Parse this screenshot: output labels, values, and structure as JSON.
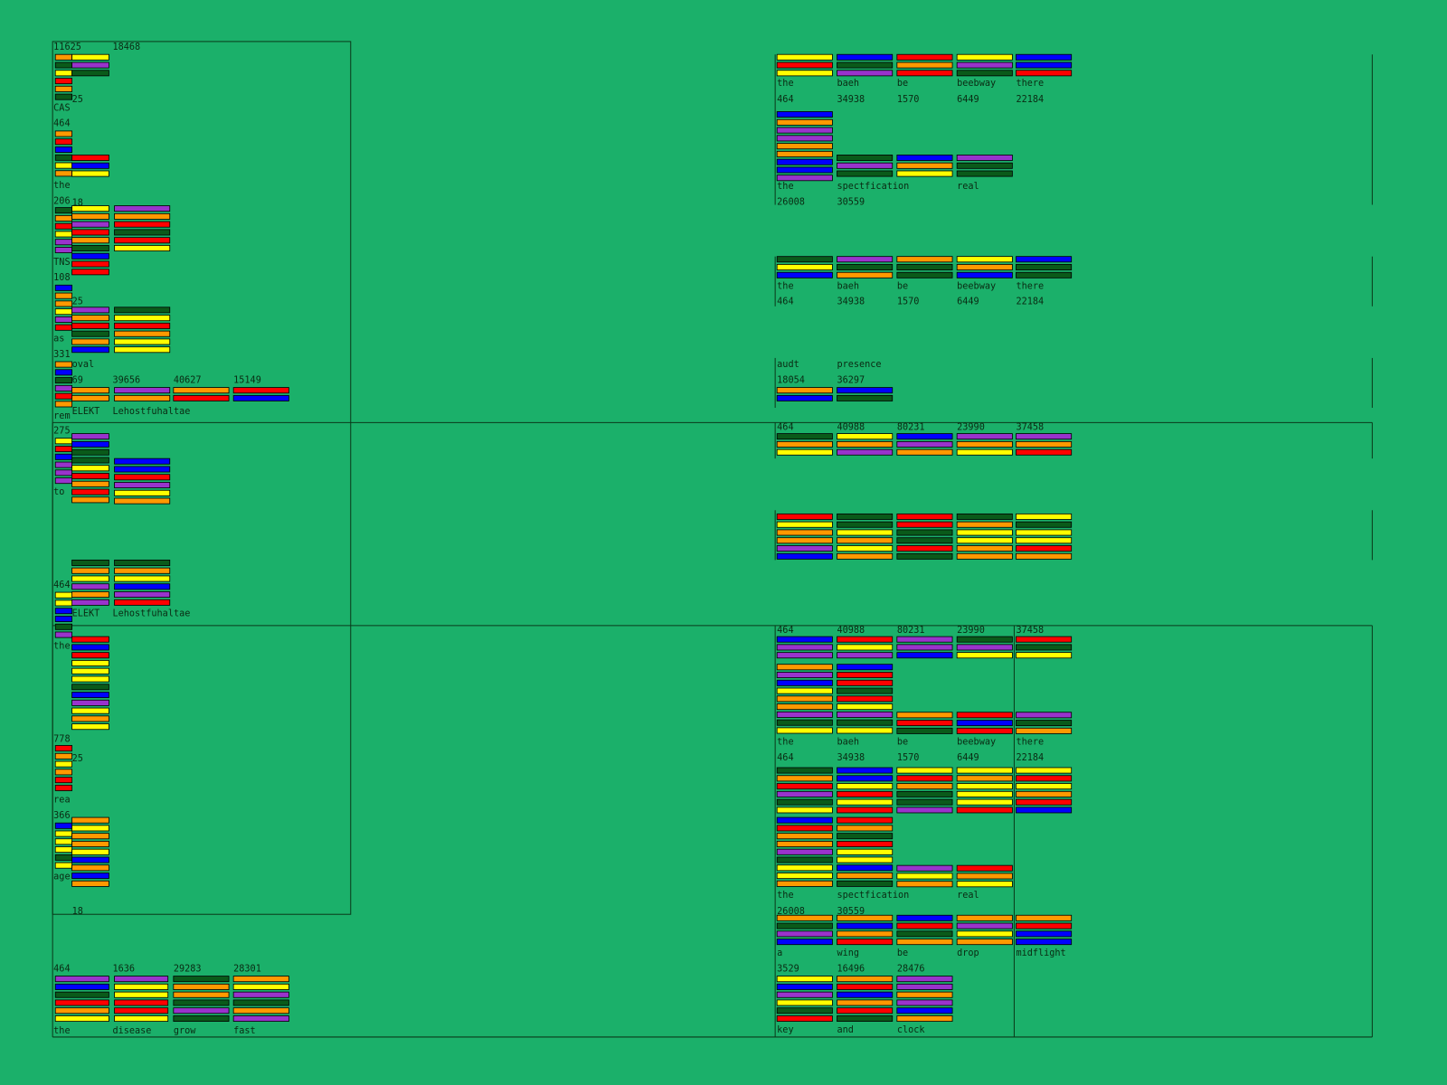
{
  "left": [
    11625,
    18468,
    25,
    "CAS",
    464,
    "the",
    206,
    18,
    "TNS",
    108,
    25,
    "as",
    331,
    "oval",
    69,
    39656,
    40627,
    15149,
    "ELEKT",
    "Lehostfuhaltae",
    "rem",
    275,
    "to",
    464,
    "ELEKT",
    "Lehostfuhaltae",
    "the",
    778,
    25,
    "rea",
    366,
    "age",
    18,
    464,
    1636,
    29283,
    28301,
    "the",
    "disease",
    "grow",
    "fast"
  ],
  "right": [
    "the",
    "baeh",
    "be",
    "beebway",
    "there",
    464,
    34938,
    1570,
    6449,
    22184,
    "the",
    "spectfication",
    "real",
    26008,
    30559,
    "the",
    "baeh",
    "be",
    "beebway",
    "there",
    464,
    34938,
    1570,
    6449,
    22184,
    "audt",
    "presence",
    18054,
    36297,
    464,
    40988,
    80231,
    23990,
    37458,
    464,
    40988,
    80231,
    23990,
    37458,
    "the",
    "baeh",
    "be",
    "beebway",
    "there",
    464,
    34938,
    1570,
    6449,
    22184,
    "the",
    "spectfication",
    "real",
    26008,
    30559,
    "a",
    "wing",
    "be",
    "drop",
    "midflight",
    3529,
    16496,
    28476,
    "key",
    "and",
    "clock"
  ]
}
